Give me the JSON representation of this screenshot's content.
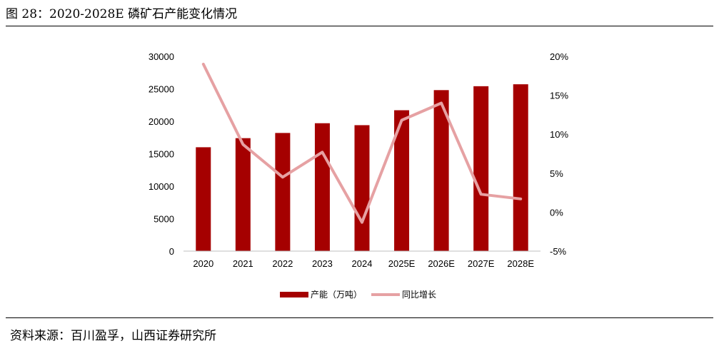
{
  "header": {
    "title": "图 28：2020-2028E 磷矿石产能变化情况"
  },
  "footer": {
    "source": "资料来源：百川盈孚，山西证券研究所"
  },
  "colors": {
    "bar": "#a50000",
    "line": "#e6a1a3"
  },
  "chart_data": {
    "type": "bar",
    "categories": [
      "2020",
      "2021",
      "2022",
      "2023",
      "2024",
      "2025E",
      "2026E",
      "2027E",
      "2028E"
    ],
    "series": [
      {
        "name": "产能（万吨）",
        "type": "bar",
        "axis": "left",
        "values": [
          16000,
          17400,
          18200,
          19700,
          19400,
          21700,
          24800,
          25400,
          25700
        ]
      },
      {
        "name": "同比增长",
        "type": "line",
        "axis": "right",
        "values": [
          0.19,
          0.087,
          0.045,
          0.077,
          -0.013,
          0.118,
          0.14,
          0.023,
          0.017
        ]
      }
    ],
    "ylim": [
      0,
      30000
    ],
    "y_ticks": [
      "0",
      "5000",
      "10000",
      "15000",
      "20000",
      "25000",
      "30000"
    ],
    "y2lim": [
      -0.05,
      0.2
    ],
    "y2_ticks": [
      "-5%",
      "0%",
      "5%",
      "10%",
      "15%",
      "20%"
    ],
    "legend": "bottom",
    "grid": false
  }
}
